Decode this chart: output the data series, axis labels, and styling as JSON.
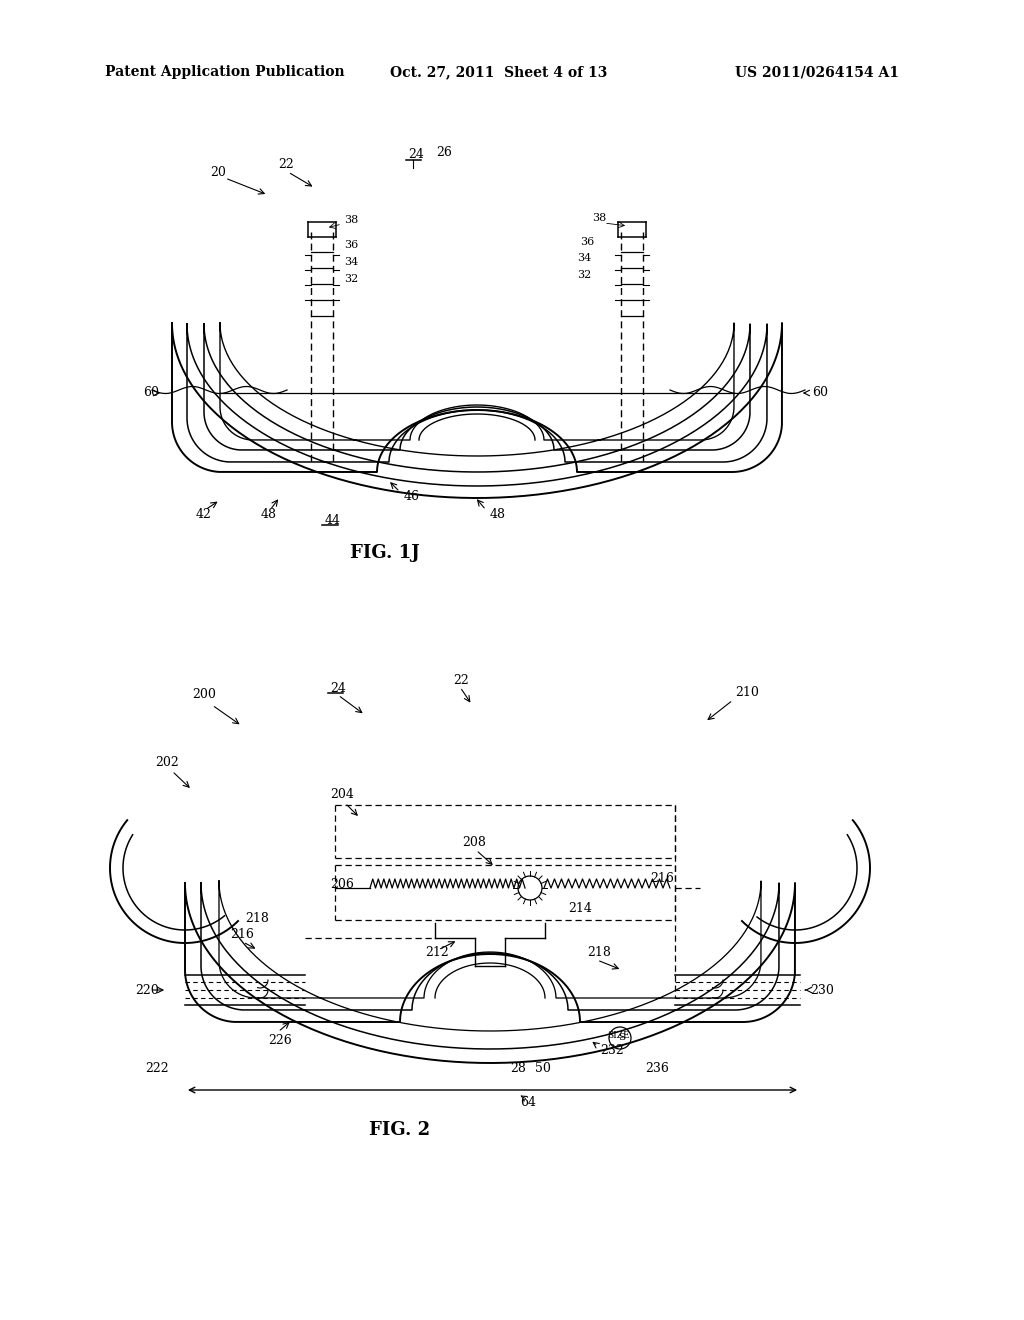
{
  "bg_color": "#ffffff",
  "header_left": "Patent Application Publication",
  "header_mid": "Oct. 27, 2011  Sheet 4 of 13",
  "header_right": "US 2011/0264154 A1",
  "fig1j_label": "FIG. 1J",
  "fig2_label": "FIG. 2"
}
